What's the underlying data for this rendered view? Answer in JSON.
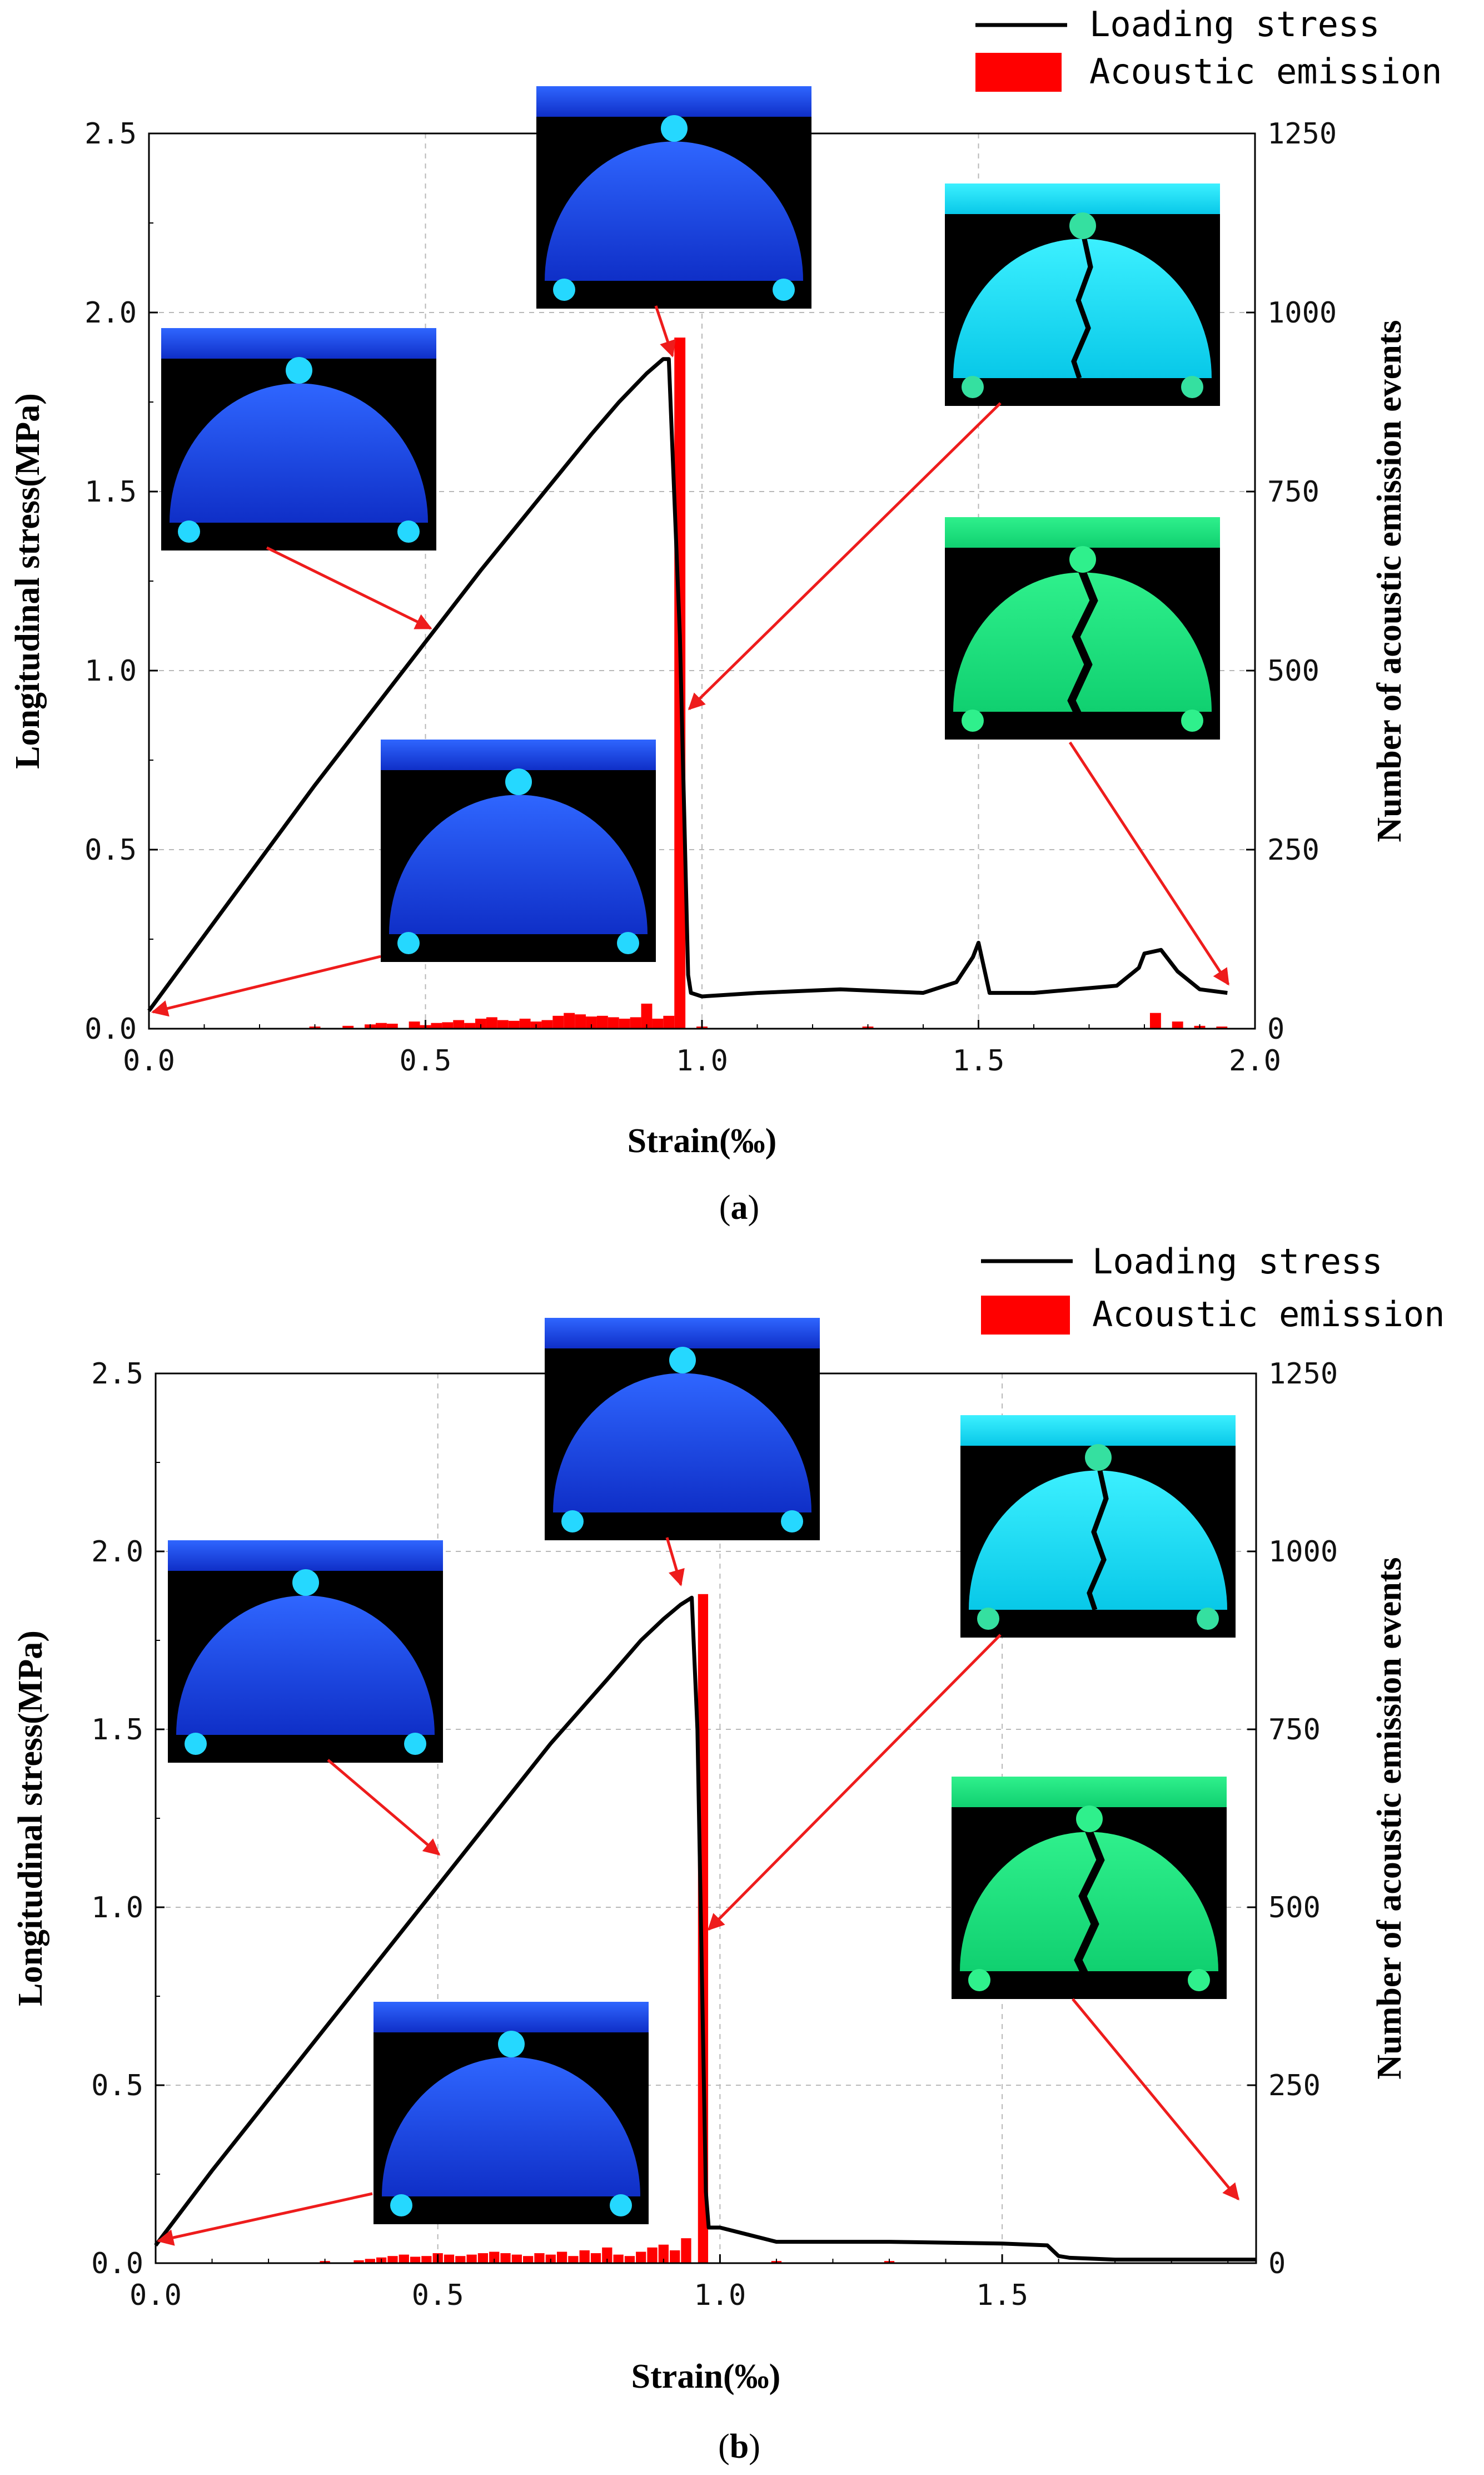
{
  "colors": {
    "stress_line": "#000000",
    "ae_bars": "#ff0000",
    "annotation_arrow": "#ee1c1c",
    "grid": "#b8b8b8"
  },
  "chart_data": [
    {
      "type": "bar+line",
      "panel_label": "a",
      "xlabel": "Strain(‰)",
      "ylabel_left": "Longitudinal stress(MPa)",
      "ylabel_right": "Number of acoustic emission events",
      "xlim": [
        0,
        2
      ],
      "ylim_left": [
        0,
        2.5
      ],
      "ylim_right": [
        0,
        1250
      ],
      "xticks": [
        "0.0",
        "0.5",
        "1.0",
        "1.5",
        "2.0"
      ],
      "yticks_left": [
        "0.0",
        "0.5",
        "1.0",
        "1.5",
        "2.0",
        "2.5"
      ],
      "yticks_right": [
        "0",
        "250",
        "500",
        "750",
        "1000",
        "1250"
      ],
      "grid": true,
      "legend": {
        "position": "top-right",
        "entries": [
          "Loading stress",
          "Acoustic emission"
        ]
      },
      "series": [
        {
          "name": "Loading stress",
          "kind": "line",
          "axis": "left",
          "x": [
            0,
            0.1,
            0.2,
            0.3,
            0.4,
            0.5,
            0.6,
            0.7,
            0.8,
            0.85,
            0.9,
            0.93,
            0.94,
            0.96,
            0.975,
            0.98,
            1.0,
            1.1,
            1.25,
            1.4,
            1.46,
            1.49,
            1.5,
            1.52,
            1.6,
            1.75,
            1.79,
            1.8,
            1.83,
            1.86,
            1.9,
            1.95
          ],
          "y": [
            0.05,
            0.26,
            0.47,
            0.68,
            0.88,
            1.08,
            1.28,
            1.47,
            1.66,
            1.75,
            1.83,
            1.87,
            1.87,
            1.1,
            0.15,
            0.1,
            0.09,
            0.1,
            0.11,
            0.1,
            0.13,
            0.2,
            0.24,
            0.1,
            0.1,
            0.12,
            0.17,
            0.21,
            0.22,
            0.16,
            0.11,
            0.1
          ]
        },
        {
          "name": "Acoustic emission",
          "kind": "bar",
          "axis": "right",
          "bar_width": 0.02,
          "x": [
            0.3,
            0.36,
            0.4,
            0.42,
            0.44,
            0.48,
            0.5,
            0.52,
            0.54,
            0.56,
            0.58,
            0.6,
            0.62,
            0.64,
            0.66,
            0.68,
            0.7,
            0.72,
            0.74,
            0.76,
            0.78,
            0.8,
            0.82,
            0.84,
            0.86,
            0.88,
            0.9,
            0.92,
            0.94,
            0.96,
            1.0,
            1.3,
            1.82,
            1.86,
            1.9,
            1.94
          ],
          "y": [
            3,
            4,
            6,
            8,
            7,
            10,
            5,
            8,
            9,
            12,
            8,
            14,
            16,
            12,
            11,
            14,
            10,
            12,
            18,
            22,
            20,
            17,
            18,
            16,
            14,
            16,
            35,
            14,
            18,
            965,
            3,
            3,
            22,
            10,
            4,
            3
          ]
        }
      ]
    },
    {
      "type": "bar+line",
      "panel_label": "b",
      "xlabel": "Strain(‰)",
      "ylabel_left": "Longitudinal stress(MPa)",
      "ylabel_right": "Number of acoustic emission events",
      "xlim": [
        0,
        1.95
      ],
      "ylim_left": [
        0,
        2.5
      ],
      "ylim_right": [
        0,
        1250
      ],
      "xticks": [
        "0.0",
        "0.5",
        "1.0",
        "1.5"
      ],
      "yticks_left": [
        "0.0",
        "0.5",
        "1.0",
        "1.5",
        "2.0",
        "2.5"
      ],
      "yticks_right": [
        "0",
        "250",
        "500",
        "750",
        "1000",
        "1250"
      ],
      "grid": true,
      "legend": {
        "position": "top-right",
        "entries": [
          "Loading stress",
          "Acoustic emission"
        ]
      },
      "series": [
        {
          "name": "Loading stress",
          "kind": "line",
          "axis": "left",
          "x": [
            0,
            0.1,
            0.2,
            0.3,
            0.4,
            0.5,
            0.6,
            0.7,
            0.8,
            0.86,
            0.9,
            0.93,
            0.95,
            0.96,
            0.975,
            0.98,
            1.0,
            1.05,
            1.1,
            1.3,
            1.5,
            1.58,
            1.6,
            1.62,
            1.7,
            1.8,
            1.9,
            1.95
          ],
          "y": [
            0.05,
            0.26,
            0.46,
            0.66,
            0.86,
            1.06,
            1.26,
            1.46,
            1.64,
            1.75,
            1.81,
            1.85,
            1.87,
            1.5,
            0.2,
            0.1,
            0.1,
            0.08,
            0.06,
            0.06,
            0.055,
            0.05,
            0.02,
            0.015,
            0.01,
            0.01,
            0.01,
            0.01
          ]
        },
        {
          "name": "Acoustic emission",
          "kind": "bar",
          "axis": "right",
          "bar_width": 0.018,
          "x": [
            0.3,
            0.36,
            0.38,
            0.4,
            0.42,
            0.44,
            0.46,
            0.48,
            0.5,
            0.52,
            0.54,
            0.56,
            0.58,
            0.6,
            0.62,
            0.64,
            0.66,
            0.68,
            0.7,
            0.72,
            0.74,
            0.76,
            0.78,
            0.8,
            0.82,
            0.84,
            0.86,
            0.88,
            0.9,
            0.92,
            0.94,
            0.97,
            1.1,
            1.3
          ],
          "y": [
            3,
            4,
            6,
            8,
            10,
            12,
            9,
            10,
            14,
            12,
            10,
            12,
            14,
            16,
            14,
            12,
            10,
            14,
            12,
            16,
            10,
            18,
            14,
            22,
            12,
            10,
            16,
            22,
            26,
            18,
            35,
            940,
            3,
            3
          ]
        }
      ]
    }
  ]
}
